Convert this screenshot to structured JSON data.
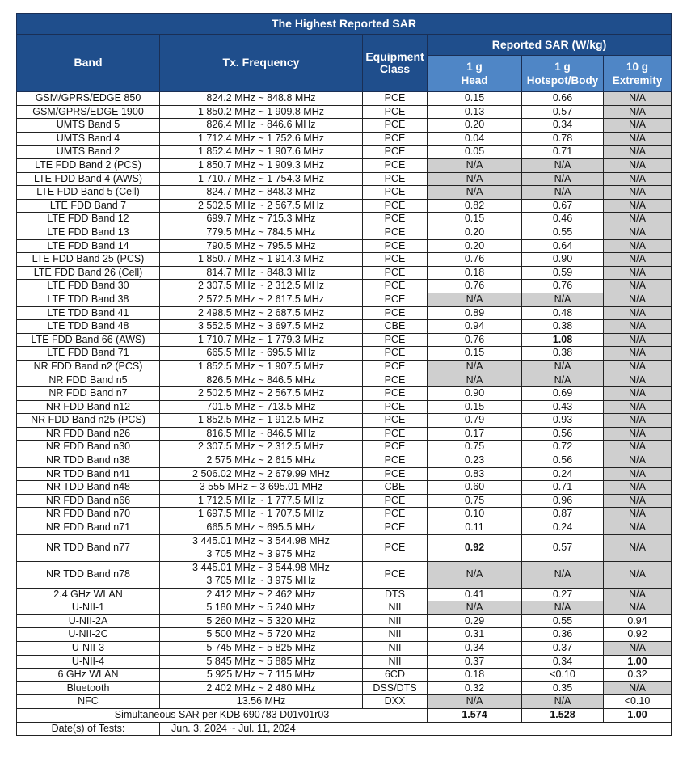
{
  "title": "The Highest Reported SAR",
  "headers": {
    "band": "Band",
    "freq": "Tx. Frequency",
    "class_line1": "Equipment",
    "class_line2": "Class",
    "reported": "Reported SAR (W/kg)",
    "head_line1": "1 g",
    "head_line2": "Head",
    "body_line1": "1 g",
    "body_line2": "Hotspot/Body",
    "ext_line1": "10 g",
    "ext_line2": "Extremity"
  },
  "rows": [
    {
      "band": "GSM/GPRS/EDGE 850",
      "freq": [
        "824.2 MHz ~ 848.8 MHz"
      ],
      "cls": "PCE",
      "head": "0.15",
      "body": "0.66",
      "ext": "N/A"
    },
    {
      "band": "GSM/GPRS/EDGE 1900",
      "freq": [
        "1 850.2 MHz ~ 1 909.8 MHz"
      ],
      "cls": "PCE",
      "head": "0.13",
      "body": "0.57",
      "ext": "N/A"
    },
    {
      "band": "UMTS Band 5",
      "freq": [
        "826.4 MHz ~ 846.6 MHz"
      ],
      "cls": "PCE",
      "head": "0.20",
      "body": "0.34",
      "ext": "N/A"
    },
    {
      "band": "UMTS Band 4",
      "freq": [
        "1 712.4 MHz ~ 1 752.6 MHz"
      ],
      "cls": "PCE",
      "head": "0.04",
      "body": "0.78",
      "ext": "N/A"
    },
    {
      "band": "UMTS Band 2",
      "freq": [
        "1 852.4 MHz ~ 1 907.6 MHz"
      ],
      "cls": "PCE",
      "head": "0.05",
      "body": "0.71",
      "ext": "N/A"
    },
    {
      "band": "LTE FDD Band 2 (PCS)",
      "freq": [
        "1 850.7 MHz ~ 1 909.3 MHz"
      ],
      "cls": "PCE",
      "head": "N/A",
      "body": "N/A",
      "ext": "N/A"
    },
    {
      "band": "LTE FDD Band 4 (AWS)",
      "freq": [
        "1 710.7 MHz ~ 1 754.3 MHz"
      ],
      "cls": "PCE",
      "head": "N/A",
      "body": "N/A",
      "ext": "N/A"
    },
    {
      "band": "LTE FDD Band 5 (Cell)",
      "freq": [
        "824.7 MHz ~ 848.3 MHz"
      ],
      "cls": "PCE",
      "head": "N/A",
      "body": "N/A",
      "ext": "N/A"
    },
    {
      "band": "LTE FDD Band 7",
      "freq": [
        "2 502.5 MHz ~ 2 567.5 MHz"
      ],
      "cls": "PCE",
      "head": "0.82",
      "body": "0.67",
      "ext": "N/A"
    },
    {
      "band": "LTE FDD Band 12",
      "freq": [
        "699.7 MHz ~ 715.3 MHz"
      ],
      "cls": "PCE",
      "head": "0.15",
      "body": "0.46",
      "ext": "N/A"
    },
    {
      "band": "LTE FDD Band 13",
      "freq": [
        "779.5 MHz ~ 784.5 MHz"
      ],
      "cls": "PCE",
      "head": "0.20",
      "body": "0.55",
      "ext": "N/A"
    },
    {
      "band": "LTE FDD Band 14",
      "freq": [
        "790.5 MHz ~ 795.5 MHz"
      ],
      "cls": "PCE",
      "head": "0.20",
      "body": "0.64",
      "ext": "N/A"
    },
    {
      "band": "LTE FDD Band 25 (PCS)",
      "freq": [
        "1 850.7 MHz ~ 1 914.3 MHz"
      ],
      "cls": "PCE",
      "head": "0.76",
      "body": "0.90",
      "ext": "N/A"
    },
    {
      "band": "LTE FDD Band 26 (Cell)",
      "freq": [
        "814.7 MHz ~ 848.3 MHz"
      ],
      "cls": "PCE",
      "head": "0.18",
      "body": "0.59",
      "ext": "N/A"
    },
    {
      "band": "LTE FDD Band 30",
      "freq": [
        "2 307.5 MHz ~ 2 312.5 MHz"
      ],
      "cls": "PCE",
      "head": "0.76",
      "body": "0.76",
      "ext": "N/A"
    },
    {
      "band": "LTE TDD Band 38",
      "freq": [
        "2 572.5 MHz ~ 2 617.5 MHz"
      ],
      "cls": "PCE",
      "head": "N/A",
      "body": "N/A",
      "ext": "N/A"
    },
    {
      "band": "LTE TDD Band 41",
      "freq": [
        "2 498.5 MHz ~ 2 687.5 MHz"
      ],
      "cls": "PCE",
      "head": "0.89",
      "body": "0.48",
      "ext": "N/A"
    },
    {
      "band": "LTE TDD Band 48",
      "freq": [
        "3 552.5 MHz ~ 3 697.5 MHz"
      ],
      "cls": "CBE",
      "head": "0.94",
      "body": "0.38",
      "ext": "N/A"
    },
    {
      "band": "LTE FDD Band 66 (AWS)",
      "freq": [
        "1 710.7 MHz ~ 1 779.3 MHz"
      ],
      "cls": "PCE",
      "head": "0.76",
      "body": "1.08",
      "ext": "N/A",
      "bold": [
        "body"
      ]
    },
    {
      "band": "LTE FDD Band 71",
      "freq": [
        "665.5 MHz ~ 695.5 MHz"
      ],
      "cls": "PCE",
      "head": "0.15",
      "body": "0.38",
      "ext": "N/A"
    },
    {
      "band": "NR FDD Band n2 (PCS)",
      "freq": [
        "1 852.5 MHz ~ 1 907.5 MHz"
      ],
      "cls": "PCE",
      "head": "N/A",
      "body": "N/A",
      "ext": "N/A"
    },
    {
      "band": "NR FDD Band n5",
      "freq": [
        "826.5 MHz ~ 846.5 MHz"
      ],
      "cls": "PCE",
      "head": "N/A",
      "body": "N/A",
      "ext": "N/A"
    },
    {
      "band": "NR FDD Band n7",
      "freq": [
        "2 502.5 MHz ~ 2 567.5 MHz"
      ],
      "cls": "PCE",
      "head": "0.90",
      "body": "0.69",
      "ext": "N/A"
    },
    {
      "band": "NR FDD Band n12",
      "freq": [
        "701.5 MHz ~ 713.5 MHz"
      ],
      "cls": "PCE",
      "head": "0.15",
      "body": "0.43",
      "ext": "N/A"
    },
    {
      "band": "NR FDD Band n25 (PCS)",
      "freq": [
        "1 852.5 MHz ~ 1 912.5 MHz"
      ],
      "cls": "PCE",
      "head": "0.79",
      "body": "0.93",
      "ext": "N/A"
    },
    {
      "band": "NR FDD Band n26",
      "freq": [
        "816.5 MHz ~ 846.5 MHz"
      ],
      "cls": "PCE",
      "head": "0.17",
      "body": "0.56",
      "ext": "N/A"
    },
    {
      "band": "NR FDD Band n30",
      "freq": [
        "2 307.5 MHz ~ 2 312.5 MHz"
      ],
      "cls": "PCE",
      "head": "0.75",
      "body": "0.72",
      "ext": "N/A"
    },
    {
      "band": "NR TDD Band n38",
      "freq": [
        "2 575 MHz ~ 2 615 MHz"
      ],
      "cls": "PCE",
      "head": "0.23",
      "body": "0.56",
      "ext": "N/A"
    },
    {
      "band": "NR TDD Band n41",
      "freq": [
        "2 506.02 MHz ~ 2 679.99 MHz"
      ],
      "cls": "PCE",
      "head": "0.83",
      "body": "0.24",
      "ext": "N/A"
    },
    {
      "band": "NR TDD Band n48",
      "freq": [
        "3 555 MHz ~ 3 695.01 MHz"
      ],
      "cls": "CBE",
      "head": "0.60",
      "body": "0.71",
      "ext": "N/A"
    },
    {
      "band": "NR FDD Band n66",
      "freq": [
        "1 712.5 MHz ~ 1 777.5 MHz"
      ],
      "cls": "PCE",
      "head": "0.75",
      "body": "0.96",
      "ext": "N/A"
    },
    {
      "band": "NR FDD Band n70",
      "freq": [
        "1 697.5 MHz ~ 1 707.5 MHz"
      ],
      "cls": "PCE",
      "head": "0.10",
      "body": "0.87",
      "ext": "N/A"
    },
    {
      "band": "NR FDD Band n71",
      "freq": [
        "665.5 MHz ~ 695.5 MHz"
      ],
      "cls": "PCE",
      "head": "0.11",
      "body": "0.24",
      "ext": "N/A"
    },
    {
      "band": "NR TDD Band n77",
      "freq": [
        "3 445.01 MHz ~ 3 544.98 MHz",
        "3 705 MHz ~ 3 975 MHz"
      ],
      "cls": "PCE",
      "head": "0.92",
      "body": "0.57",
      "ext": "N/A",
      "bold": [
        "head"
      ]
    },
    {
      "band": "NR TDD Band n78",
      "freq": [
        "3 445.01 MHz ~ 3 544.98 MHz",
        "3 705 MHz ~ 3 975 MHz"
      ],
      "cls": "PCE",
      "head": "N/A",
      "body": "N/A",
      "ext": "N/A"
    },
    {
      "band": "2.4 GHz WLAN",
      "freq": [
        "2 412 MHz ~ 2 462 MHz"
      ],
      "cls": "DTS",
      "head": "0.41",
      "body": "0.27",
      "ext": "N/A"
    },
    {
      "band": "U-NII-1",
      "freq": [
        "5 180 MHz ~ 5 240 MHz"
      ],
      "cls": "NII",
      "head": "N/A",
      "body": "N/A",
      "ext": "N/A"
    },
    {
      "band": "U-NII-2A",
      "freq": [
        "5 260 MHz ~ 5 320 MHz"
      ],
      "cls": "NII",
      "head": "0.29",
      "body": "0.55",
      "ext": "0.94"
    },
    {
      "band": "U-NII-2C",
      "freq": [
        "5 500 MHz ~ 5 720 MHz"
      ],
      "cls": "NII",
      "head": "0.31",
      "body": "0.36",
      "ext": "0.92"
    },
    {
      "band": "U-NII-3",
      "freq": [
        "5 745 MHz ~ 5 825 MHz"
      ],
      "cls": "NII",
      "head": "0.34",
      "body": "0.37",
      "ext": "N/A"
    },
    {
      "band": "U-NII-4",
      "freq": [
        "5 845 MHz ~ 5 885 MHz"
      ],
      "cls": "NII",
      "head": "0.37",
      "body": "0.34",
      "ext": "1.00",
      "bold": [
        "ext"
      ]
    },
    {
      "band": "6 GHz WLAN",
      "freq": [
        "5 925 MHz ~ 7 115 MHz"
      ],
      "cls": "6CD",
      "head": "0.18",
      "body": "<0.10",
      "ext": "0.32"
    },
    {
      "band": "Bluetooth",
      "freq": [
        "2 402 MHz ~ 2 480 MHz"
      ],
      "cls": "DSS/DTS",
      "head": "0.32",
      "body": "0.35",
      "ext": "N/A"
    },
    {
      "band": "NFC",
      "freq": [
        "13.56 MHz"
      ],
      "cls": "DXX",
      "head": "N/A",
      "body": "N/A",
      "ext": "<0.10"
    }
  ],
  "simultaneous": {
    "label": "Simultaneous SAR per KDB 690783 D01v01r03",
    "head": "1.574",
    "body": "1.528",
    "ext": "1.00"
  },
  "dates": {
    "label": "Date(s) of Tests:",
    "value": "Jun. 3, 2024 ~ Jul. 11, 2024"
  },
  "colors": {
    "header": "#1f4e8c",
    "subheader": "#4f86c6",
    "na_fill": "#cfcfcf"
  }
}
